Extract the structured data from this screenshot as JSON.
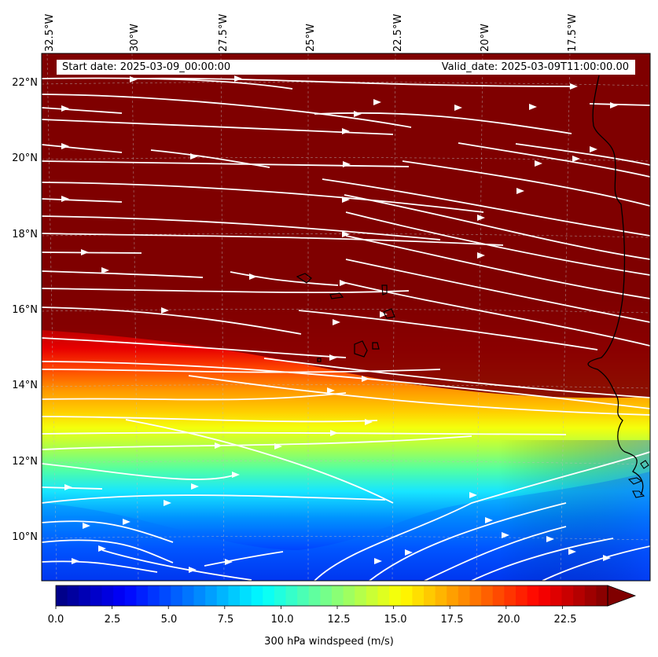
{
  "header": {
    "start_date": "Start date: 2025-03-09_00:00:00",
    "valid_date": "Valid_date: 2025-03-09T11:00:00.00"
  },
  "map": {
    "lon_ticks": [
      "32.5°W",
      "30°W",
      "27.5°W",
      "25°W",
      "22.5°W",
      "20°W",
      "17.5°W"
    ],
    "lat_ticks": [
      "22°N",
      "20°N",
      "18°N",
      "16°N",
      "14°N",
      "12°N",
      "10°N"
    ],
    "gridlines": true,
    "streamline_color": "#ffffff",
    "coastline_color": "#000000"
  },
  "colorbar": {
    "title": "300 hPa windspeed (m/s)",
    "ticks": [
      "0.0",
      "2.5",
      "5.0",
      "7.5",
      "10.0",
      "12.5",
      "15.0",
      "17.5",
      "20.0",
      "22.5"
    ],
    "colormap": "jet",
    "vmin": 0,
    "vmax": 25,
    "extend": "max"
  }
}
